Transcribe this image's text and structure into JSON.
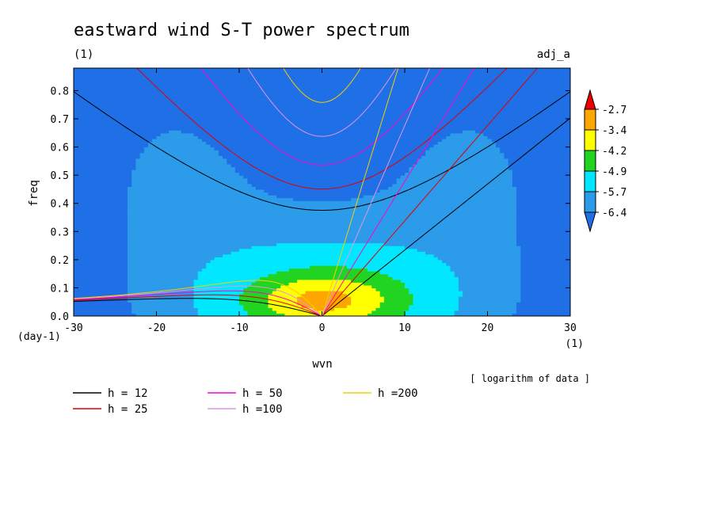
{
  "chart_data": {
    "type": "heatmap",
    "title": "eastward wind S-T power spectrum",
    "subtitle_left": "(1)",
    "subtitle_right": "adj_a",
    "xlabel": "wvn",
    "ylabel": "freq",
    "x_unit_label": "(1)",
    "y_unit_label": "(day-1)",
    "xlim": [
      -30,
      30
    ],
    "ylim": [
      0,
      0.88
    ],
    "x_ticks": [
      -30,
      -20,
      -10,
      0,
      10,
      20,
      30
    ],
    "y_ticks": [
      0.0,
      0.1,
      0.2,
      0.3,
      0.4,
      0.5,
      0.6,
      0.7,
      0.8
    ],
    "note": "[ logarithm of data ]",
    "colorbar": {
      "levels": [
        "-2.7",
        "-3.4",
        "-4.2",
        "-4.9",
        "-5.7",
        "-6.4"
      ],
      "colors": [
        "#1f6fe6",
        "#2b9bea",
        "#00e7ff",
        "#22d422",
        "#ffff00",
        "#ffa500",
        "#ee0000"
      ]
    },
    "dispersion_curves": [
      {
        "name": "h = 12",
        "h": 12,
        "color": "#000000"
      },
      {
        "name": "h = 25",
        "h": 25,
        "color": "#e00000"
      },
      {
        "name": "h = 50",
        "h": 50,
        "color": "#ff00cc"
      },
      {
        "name": "h =100",
        "h": 100,
        "color": "#e493e4"
      },
      {
        "name": "h =200",
        "h": 200,
        "color": "#f5d000"
      }
    ]
  }
}
